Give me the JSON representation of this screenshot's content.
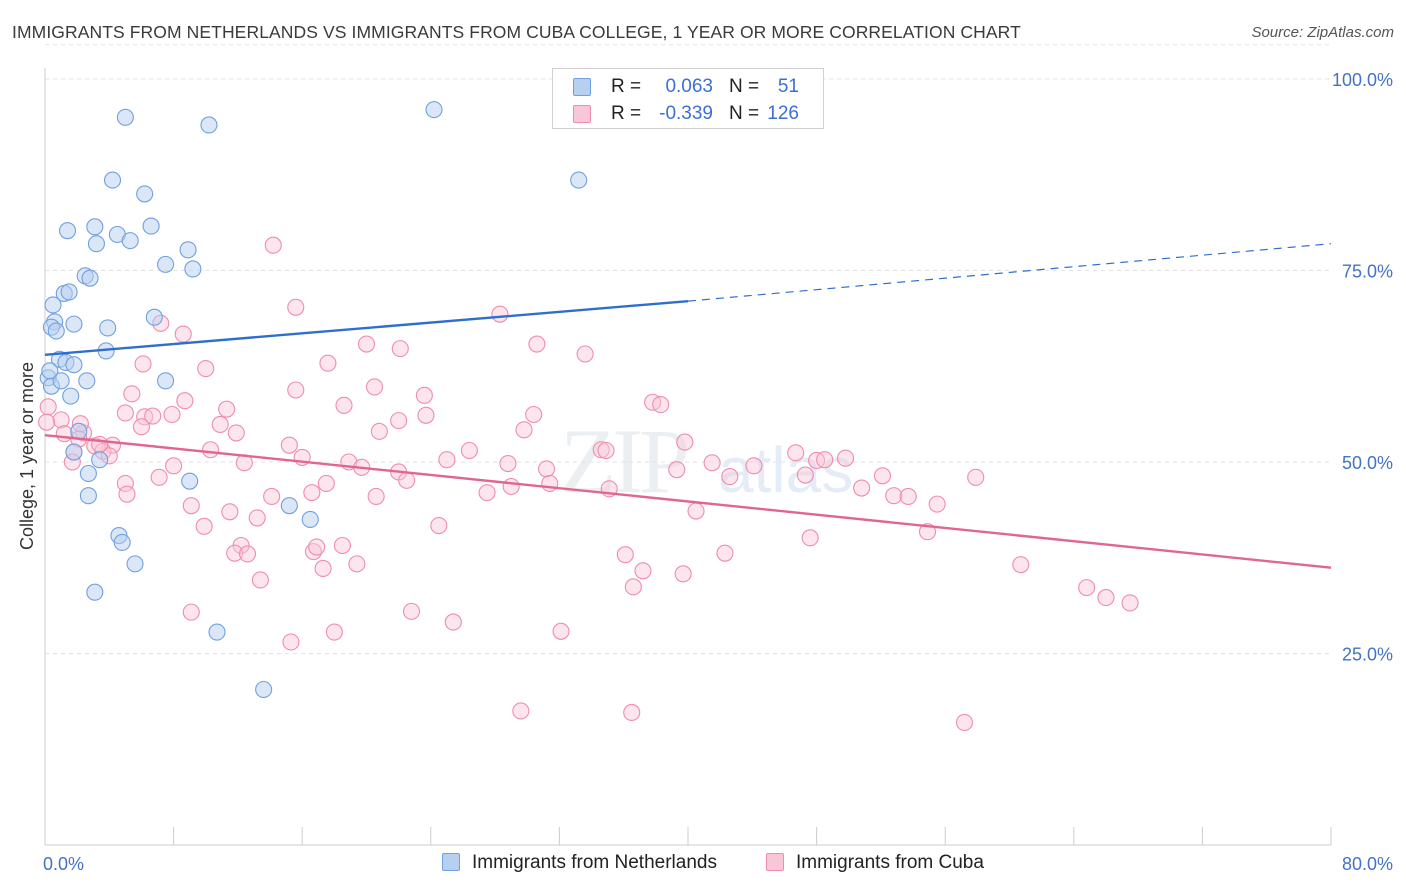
{
  "title": "IMMIGRANTS FROM NETHERLANDS VS IMMIGRANTS FROM CUBA COLLEGE, 1 YEAR OR MORE CORRELATION CHART",
  "source": "Source: ZipAtlas.com",
  "colors": {
    "netherlands": "#6fa0e0",
    "netherlands_fill": "#b8d0f0",
    "netherlands_line": "#2f6fcc",
    "cuba": "#f08cac",
    "cuba_fill": "#f8c6d6",
    "cuba_line": "#e0668e",
    "tick": "#4472c4"
  },
  "legend": {
    "rows": [
      {
        "r_label": "R =",
        "r_value": "0.063",
        "n_label": "N =",
        "n_value": "51"
      },
      {
        "r_label": "R =",
        "r_value": "-0.339",
        "n_label": "N =",
        "n_value": "126"
      }
    ]
  },
  "chart_data": {
    "type": "scatter",
    "title": "IMMIGRANTS FROM NETHERLANDS VS IMMIGRANTS FROM CUBA COLLEGE, 1 YEAR OR MORE CORRELATION CHART",
    "xlabel": "",
    "ylabel": "College, 1 year or more",
    "xlim": [
      0,
      80
    ],
    "ylim": [
      0,
      105
    ],
    "x_tick_labels": [
      "0.0%",
      "80.0%"
    ],
    "y_tick_labels": [
      "25.0%",
      "50.0%",
      "75.0%",
      "100.0%"
    ],
    "y_ticks": [
      25,
      50,
      75,
      100
    ],
    "grid": "horizontal dashed",
    "legend_position": "top-center",
    "series": [
      {
        "name": "Immigrants from Netherlands",
        "trend": {
          "x": [
            0,
            40
          ],
          "y": [
            64.0,
            71.0
          ],
          "dashed_extension_to": [
            80,
            78.5
          ]
        },
        "points": [
          [
            5,
            95
          ],
          [
            10.2,
            94
          ],
          [
            24.2,
            96
          ],
          [
            33.2,
            86.8
          ],
          [
            4.2,
            86.8
          ],
          [
            6.2,
            85
          ],
          [
            1.4,
            80.2
          ],
          [
            3.1,
            80.7
          ],
          [
            4.5,
            79.7
          ],
          [
            5.3,
            78.9
          ],
          [
            6.6,
            80.8
          ],
          [
            3.2,
            78.5
          ],
          [
            8.9,
            77.7
          ],
          [
            7.5,
            75.8
          ],
          [
            9.2,
            75.2
          ],
          [
            2.5,
            74.3
          ],
          [
            2.8,
            74.0
          ],
          [
            1.2,
            72.0
          ],
          [
            1.5,
            72.2
          ],
          [
            0.5,
            70.5
          ],
          [
            0.6,
            68.3
          ],
          [
            0.4,
            67.6
          ],
          [
            0.7,
            67.1
          ],
          [
            1.8,
            68.0
          ],
          [
            3.9,
            67.5
          ],
          [
            6.8,
            68.9
          ],
          [
            0.9,
            63.4
          ],
          [
            1.3,
            63.0
          ],
          [
            1.8,
            62.7
          ],
          [
            3.8,
            64.5
          ],
          [
            0.2,
            61.0
          ],
          [
            0.4,
            59.9
          ],
          [
            1.0,
            60.6
          ],
          [
            2.6,
            60.6
          ],
          [
            7.5,
            60.6
          ],
          [
            1.6,
            58.6
          ],
          [
            2.1,
            54.0
          ],
          [
            1.8,
            51.3
          ],
          [
            3.4,
            50.3
          ],
          [
            2.7,
            48.5
          ],
          [
            9.0,
            47.5
          ],
          [
            2.7,
            45.6
          ],
          [
            15.2,
            44.3
          ],
          [
            16.5,
            42.5
          ],
          [
            4.6,
            40.4
          ],
          [
            4.8,
            39.5
          ],
          [
            5.6,
            36.7
          ],
          [
            3.1,
            33.0
          ],
          [
            10.7,
            27.8
          ],
          [
            13.6,
            20.3
          ],
          [
            0.3,
            61.9
          ]
        ]
      },
      {
        "name": "Immigrants from Cuba",
        "trend": {
          "x": [
            0,
            80
          ],
          "y": [
            53.5,
            36.2
          ]
        },
        "points": [
          [
            14.2,
            78.3
          ],
          [
            15.6,
            70.2
          ],
          [
            28.3,
            69.3
          ],
          [
            7.2,
            68.1
          ],
          [
            8.6,
            66.7
          ],
          [
            20.0,
            65.4
          ],
          [
            22.1,
            64.8
          ],
          [
            30.6,
            65.4
          ],
          [
            33.6,
            64.1
          ],
          [
            17.6,
            62.9
          ],
          [
            6.1,
            62.8
          ],
          [
            10.0,
            62.2
          ],
          [
            20.5,
            59.8
          ],
          [
            15.6,
            59.4
          ],
          [
            23.6,
            58.7
          ],
          [
            5.4,
            58.9
          ],
          [
            8.7,
            58.0
          ],
          [
            18.6,
            57.4
          ],
          [
            37.8,
            57.8
          ],
          [
            38.3,
            57.5
          ],
          [
            0.2,
            57.2
          ],
          [
            11.3,
            56.9
          ],
          [
            5.0,
            56.4
          ],
          [
            6.2,
            55.9
          ],
          [
            6.7,
            56.0
          ],
          [
            7.9,
            56.2
          ],
          [
            22.0,
            55.4
          ],
          [
            23.7,
            56.1
          ],
          [
            30.4,
            56.2
          ],
          [
            1.0,
            55.5
          ],
          [
            6.0,
            54.6
          ],
          [
            10.9,
            54.9
          ],
          [
            11.9,
            53.8
          ],
          [
            20.8,
            54.0
          ],
          [
            29.8,
            54.2
          ],
          [
            1.2,
            53.7
          ],
          [
            2.4,
            53.8
          ],
          [
            2.1,
            53.0
          ],
          [
            4.2,
            52.2
          ],
          [
            3.1,
            52.1
          ],
          [
            1.8,
            51.3
          ],
          [
            3.6,
            51.4
          ],
          [
            4.0,
            50.8
          ],
          [
            10.3,
            51.6
          ],
          [
            15.2,
            52.2
          ],
          [
            16.0,
            50.6
          ],
          [
            26.4,
            51.5
          ],
          [
            34.6,
            51.6
          ],
          [
            34.9,
            51.5
          ],
          [
            39.8,
            52.6
          ],
          [
            46.7,
            51.2
          ],
          [
            48.0,
            50.2
          ],
          [
            48.5,
            50.3
          ],
          [
            49.8,
            50.5
          ],
          [
            1.7,
            50.0
          ],
          [
            12.4,
            49.9
          ],
          [
            18.9,
            50.0
          ],
          [
            19.7,
            49.3
          ],
          [
            22.0,
            48.7
          ],
          [
            25.0,
            50.3
          ],
          [
            28.8,
            49.8
          ],
          [
            31.2,
            49.1
          ],
          [
            39.3,
            49.0
          ],
          [
            41.5,
            49.9
          ],
          [
            42.6,
            48.1
          ],
          [
            44.1,
            49.5
          ],
          [
            47.3,
            48.3
          ],
          [
            8.0,
            49.5
          ],
          [
            7.1,
            48.0
          ],
          [
            22.5,
            47.6
          ],
          [
            17.5,
            47.2
          ],
          [
            29.0,
            46.8
          ],
          [
            31.4,
            47.2
          ],
          [
            35.1,
            46.5
          ],
          [
            52.1,
            48.2
          ],
          [
            57.9,
            48.0
          ],
          [
            5.0,
            47.2
          ],
          [
            5.1,
            45.8
          ],
          [
            14.1,
            45.5
          ],
          [
            20.6,
            45.5
          ],
          [
            27.5,
            46.0
          ],
          [
            16.6,
            46.0
          ],
          [
            50.8,
            46.6
          ],
          [
            52.8,
            45.6
          ],
          [
            53.7,
            45.5
          ],
          [
            0.1,
            55.2
          ],
          [
            9.1,
            44.3
          ],
          [
            40.5,
            43.6
          ],
          [
            55.5,
            44.5
          ],
          [
            11.5,
            43.5
          ],
          [
            13.2,
            42.7
          ],
          [
            9.9,
            41.6
          ],
          [
            24.5,
            41.7
          ],
          [
            54.9,
            40.9
          ],
          [
            47.6,
            40.1
          ],
          [
            12.2,
            39.1
          ],
          [
            11.8,
            38.1
          ],
          [
            12.6,
            38.0
          ],
          [
            16.7,
            38.3
          ],
          [
            16.9,
            38.9
          ],
          [
            18.5,
            39.1
          ],
          [
            36.1,
            37.9
          ],
          [
            37.2,
            35.8
          ],
          [
            42.3,
            38.1
          ],
          [
            19.4,
            36.7
          ],
          [
            17.3,
            36.1
          ],
          [
            39.7,
            35.4
          ],
          [
            60.7,
            36.6
          ],
          [
            13.4,
            34.6
          ],
          [
            36.6,
            33.7
          ],
          [
            64.8,
            33.6
          ],
          [
            66.0,
            32.3
          ],
          [
            67.5,
            31.6
          ],
          [
            9.1,
            30.4
          ],
          [
            22.8,
            30.5
          ],
          [
            25.4,
            29.1
          ],
          [
            18.0,
            27.8
          ],
          [
            32.1,
            27.9
          ],
          [
            15.3,
            26.5
          ],
          [
            29.6,
            17.5
          ],
          [
            36.5,
            17.3
          ],
          [
            57.2,
            16.0
          ],
          [
            2.2,
            55.0
          ],
          [
            3.4,
            52.3
          ]
        ]
      }
    ]
  },
  "bottom_legend": {
    "items": [
      {
        "label": "Immigrants from Netherlands"
      },
      {
        "label": "Immigrants from Cuba"
      }
    ]
  }
}
